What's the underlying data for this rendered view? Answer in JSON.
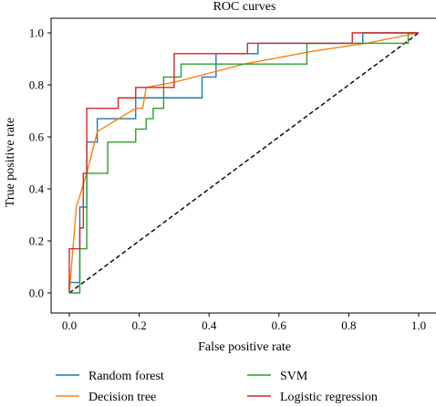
{
  "chart_data": {
    "type": "line",
    "title": "ROC curves",
    "xlabel": "False positive rate",
    "ylabel": "True positive rate",
    "xlim": [
      0,
      1
    ],
    "ylim": [
      0,
      1
    ],
    "xticks": [
      "0.0",
      "0.2",
      "0.4",
      "0.6",
      "0.8",
      "1.0"
    ],
    "yticks": [
      "0.0",
      "0.2",
      "0.4",
      "0.6",
      "0.8",
      "1.0"
    ],
    "grid": false,
    "legend_position": "bottom",
    "series": [
      {
        "name": "Random forest",
        "color": "#1f77b4",
        "step": true,
        "points": [
          [
            0,
            0
          ],
          [
            0,
            0.04
          ],
          [
            0.03,
            0.04
          ],
          [
            0.03,
            0.33
          ],
          [
            0.05,
            0.33
          ],
          [
            0.05,
            0.58
          ],
          [
            0.08,
            0.58
          ],
          [
            0.08,
            0.67
          ],
          [
            0.19,
            0.67
          ],
          [
            0.19,
            0.75
          ],
          [
            0.38,
            0.75
          ],
          [
            0.38,
            0.83
          ],
          [
            0.42,
            0.83
          ],
          [
            0.42,
            0.92
          ],
          [
            0.54,
            0.92
          ],
          [
            0.54,
            0.96
          ],
          [
            0.84,
            0.96
          ],
          [
            0.84,
            1.0
          ],
          [
            1.0,
            1.0
          ]
        ]
      },
      {
        "name": "Decision tree",
        "color": "#ff7f0e",
        "step": false,
        "points": [
          [
            0,
            0
          ],
          [
            0.02,
            0.33
          ],
          [
            0.05,
            0.46
          ],
          [
            0.08,
            0.62
          ],
          [
            0.19,
            0.71
          ],
          [
            0.21,
            0.71
          ],
          [
            0.22,
            0.79
          ],
          [
            0.3,
            0.81
          ],
          [
            0.5,
            0.88
          ],
          [
            0.7,
            0.93
          ],
          [
            0.85,
            0.96
          ],
          [
            1.0,
            1.0
          ]
        ]
      },
      {
        "name": "SVM",
        "color": "#2ca02c",
        "step": true,
        "points": [
          [
            0,
            0
          ],
          [
            0.03,
            0
          ],
          [
            0.03,
            0.17
          ],
          [
            0.05,
            0.17
          ],
          [
            0.05,
            0.46
          ],
          [
            0.11,
            0.46
          ],
          [
            0.11,
            0.58
          ],
          [
            0.19,
            0.58
          ],
          [
            0.19,
            0.63
          ],
          [
            0.22,
            0.63
          ],
          [
            0.22,
            0.67
          ],
          [
            0.24,
            0.67
          ],
          [
            0.24,
            0.71
          ],
          [
            0.27,
            0.71
          ],
          [
            0.27,
            0.83
          ],
          [
            0.32,
            0.83
          ],
          [
            0.32,
            0.88
          ],
          [
            0.68,
            0.88
          ],
          [
            0.68,
            0.96
          ],
          [
            0.97,
            0.96
          ],
          [
            0.97,
            1.0
          ],
          [
            1.0,
            1.0
          ]
        ]
      },
      {
        "name": "Logistic regression",
        "color": "#d62728",
        "step": true,
        "points": [
          [
            0,
            0
          ],
          [
            0,
            0.17
          ],
          [
            0.03,
            0.17
          ],
          [
            0.03,
            0.25
          ],
          [
            0.04,
            0.25
          ],
          [
            0.04,
            0.46
          ],
          [
            0.05,
            0.46
          ],
          [
            0.05,
            0.71
          ],
          [
            0.14,
            0.71
          ],
          [
            0.14,
            0.75
          ],
          [
            0.19,
            0.75
          ],
          [
            0.19,
            0.79
          ],
          [
            0.3,
            0.79
          ],
          [
            0.3,
            0.92
          ],
          [
            0.51,
            0.92
          ],
          [
            0.51,
            0.96
          ],
          [
            0.81,
            0.96
          ],
          [
            0.81,
            1.0
          ],
          [
            1.0,
            1.0
          ]
        ]
      }
    ],
    "reference_line": {
      "color": "#000000",
      "style": "dashed",
      "points": [
        [
          0,
          0
        ],
        [
          1,
          1
        ]
      ]
    }
  }
}
